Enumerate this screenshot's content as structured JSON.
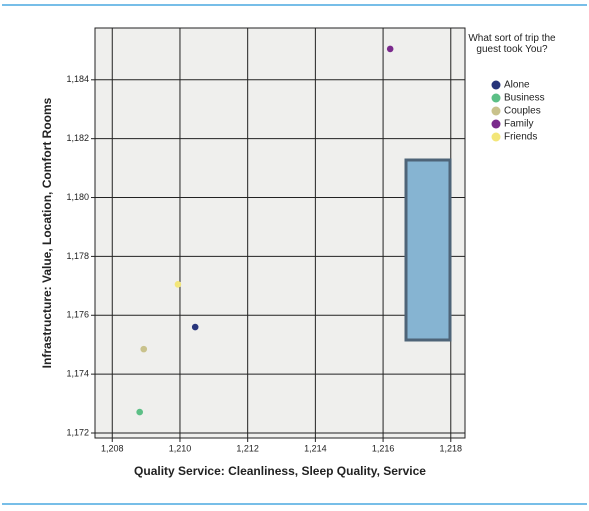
{
  "chart_data": {
    "type": "scatter",
    "x_label": "Quality Service: Cleanliness, Sleep Quality, Service",
    "y_label": "Infrastructure: Value, Location, Comfort Rooms",
    "legend_title": "What sort of trip the guest took You?",
    "xlim": [
      1.20749,
      1.21842
    ],
    "ylim": [
      1.17183,
      1.18576
    ],
    "xticks": [
      {
        "value": 1.208,
        "label": "1,208"
      },
      {
        "value": 1.21,
        "label": "1,210"
      },
      {
        "value": 1.212,
        "label": "1,212"
      },
      {
        "value": 1.214,
        "label": "1,214"
      },
      {
        "value": 1.216,
        "label": "1,216"
      },
      {
        "value": 1.218,
        "label": "1,218"
      }
    ],
    "yticks": [
      {
        "value": 1.172,
        "label": "1,172"
      },
      {
        "value": 1.174,
        "label": "1,174"
      },
      {
        "value": 1.176,
        "label": "1,176"
      },
      {
        "value": 1.178,
        "label": "1,178"
      },
      {
        "value": 1.18,
        "label": "1,180"
      },
      {
        "value": 1.182,
        "label": "1,182"
      },
      {
        "value": 1.184,
        "label": "1,184"
      }
    ],
    "grid": true,
    "series": [
      {
        "name": "Alone",
        "color": "#27347a",
        "x": [
          1.21045
        ],
        "values": [
          1.1756
        ]
      },
      {
        "name": "Business",
        "color": "#5cbf86",
        "x": [
          1.20881
        ],
        "values": [
          1.17271
        ]
      },
      {
        "name": "Couples",
        "color": "#c9c28c",
        "x": [
          1.20893
        ],
        "values": [
          1.17485
        ]
      },
      {
        "name": "Family",
        "color": "#7a2a8c",
        "x": [
          1.21621
        ],
        "values": [
          1.18505
        ]
      },
      {
        "name": "Friends",
        "color": "#f3e679",
        "x": [
          1.20994
        ],
        "values": [
          1.17705
        ]
      }
    ]
  }
}
